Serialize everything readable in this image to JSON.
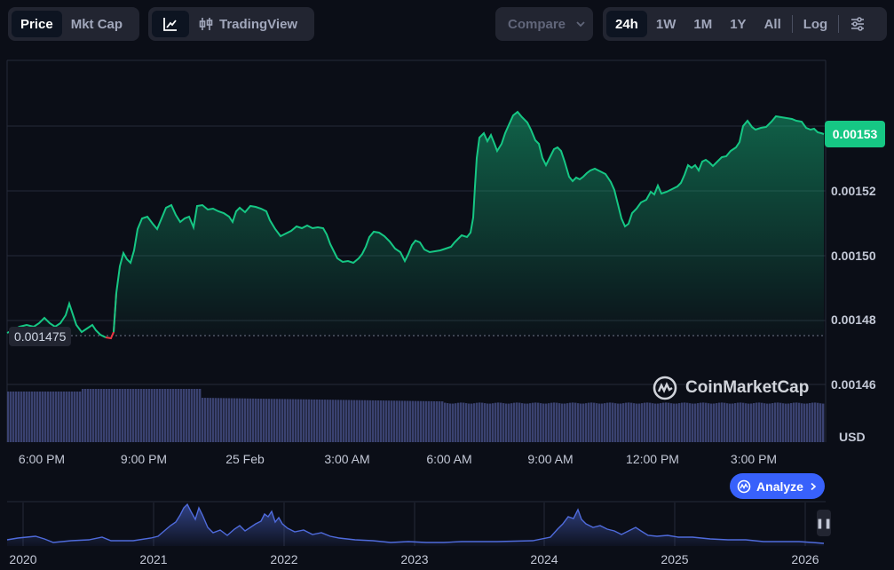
{
  "toolbar": {
    "price_tab": "Price",
    "mktcap_tab": "Mkt Cap",
    "tradingview_label": "TradingView",
    "compare_label": "Compare",
    "ranges": [
      "24h",
      "1W",
      "1M",
      "1Y",
      "All"
    ],
    "active_range": "24h",
    "log_label": "Log",
    "icons": [
      "line-chart-icon",
      "candlestick-icon",
      "chevron-down-icon",
      "settings-sliders-icon"
    ]
  },
  "chart": {
    "current_price": "0.00153",
    "start_price": "0.001475",
    "y_ticks": [
      "0.00153",
      "0.00152",
      "0.00150",
      "0.00148",
      "0.00146"
    ],
    "currency": "USD",
    "x_ticks": [
      "6:00 PM",
      "9:00 PM",
      "25 Feb",
      "3:00 AM",
      "6:00 AM",
      "9:00 AM",
      "12:00 PM",
      "3:00 PM"
    ],
    "watermark": "CoinMarketCap",
    "analyze_label": "Analyze",
    "colors": {
      "up": "#16c784",
      "down": "#ea3943",
      "volume": "#3a4270",
      "navigator": "#4f6bdc",
      "accent": "#3861fb"
    }
  },
  "navigator": {
    "years": [
      "2020",
      "2021",
      "2022",
      "2023",
      "2024",
      "2025",
      "2026"
    ]
  }
}
